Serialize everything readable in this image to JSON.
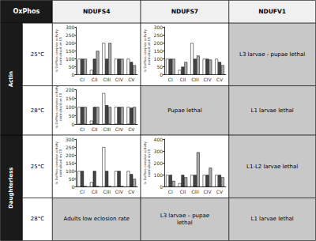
{
  "chart_data": [
    {
      "type": "table",
      "header": "OxPhos",
      "columns": [
        "NDUFS4",
        "NDUFS7",
        "NDUFV1"
      ],
      "rows": [
        {
          "group": "Actin",
          "label": "25°C",
          "cells": [
            null,
            null,
            "L3 larvae - pupae lethal"
          ]
        },
        {
          "group": "Actin",
          "label": "28°C",
          "cells": [
            null,
            "Pupae lethal",
            "L1 larvae lethal"
          ]
        },
        {
          "group": "Daughterless",
          "label": "25°C",
          "cells": [
            null,
            null,
            "L1-L2 larvae lethal"
          ]
        },
        {
          "group": "Daughterless",
          "label": "28°C",
          "cells": [
            "Adults low eclosion rate",
            "L3 larvae – pupae\nlethal",
            "L1 larvae lethal"
          ]
        }
      ]
    },
    {
      "type": "bar",
      "categories": [
        "CI",
        "CII",
        "CIII",
        "CIV",
        "CV"
      ],
      "ylabel": "% OxPhos complex activity\nnormalised on CS",
      "ylim": [
        0,
        300
      ],
      "yticks": [
        0,
        50,
        100,
        150,
        200,
        250,
        300
      ],
      "grid": false,
      "series": [
        {
          "color": "white",
          "values": [
            100,
            30,
            200,
            100,
            100
          ]
        },
        {
          "color": "#444444",
          "values": [
            100,
            100,
            100,
            100,
            80
          ]
        },
        {
          "color": "#aaaaaa",
          "values": [
            100,
            150,
            200,
            100,
            60
          ]
        }
      ]
    },
    {
      "type": "bar",
      "categories": [
        "CI",
        "CII",
        "CIII",
        "CIV",
        "CV"
      ],
      "ylabel": "% OxPhos complex activity\nnormalised on CS",
      "ylim": [
        0,
        300
      ],
      "yticks": [
        0,
        50,
        100,
        150,
        200,
        250,
        300
      ],
      "grid": false,
      "series": [
        {
          "color": "white",
          "values": [
            100,
            30,
            200,
            100,
            100
          ]
        },
        {
          "color": "#444444",
          "values": [
            100,
            50,
            100,
            100,
            80
          ]
        },
        {
          "color": "#aaaaaa",
          "values": [
            100,
            80,
            120,
            95,
            60
          ]
        }
      ]
    },
    {
      "type": "bar",
      "categories": [
        "CI",
        "CII",
        "CIII",
        "CIV",
        "CV"
      ],
      "ylabel": "% OxPhos complex activity\nnormalised on CS",
      "ylim": [
        0,
        200
      ],
      "yticks": [
        0,
        50,
        100,
        150,
        200
      ],
      "grid": false,
      "series": [
        {
          "color": "white",
          "values": [
            100,
            20,
            180,
            100,
            100
          ]
        },
        {
          "color": "#444444",
          "values": [
            100,
            100,
            110,
            100,
            95
          ]
        },
        {
          "color": "#aaaaaa",
          "values": [
            100,
            100,
            100,
            100,
            100
          ]
        }
      ]
    },
    {
      "type": "bar",
      "categories": [
        "CI",
        "CII",
        "CIII",
        "CIV",
        "CV"
      ],
      "ylabel": "% OxPhos complex activity\nnormalised on CS",
      "ylim": [
        0,
        300
      ],
      "yticks": [
        0,
        50,
        100,
        150,
        200,
        250,
        300
      ],
      "grid": false,
      "series": [
        {
          "color": "white",
          "values": [
            100,
            30,
            250,
            100,
            100
          ]
        },
        {
          "color": "#444444",
          "values": [
            100,
            100,
            100,
            100,
            80
          ]
        },
        {
          "color": "#aaaaaa",
          "values": [
            5,
            5,
            5,
            5,
            50
          ]
        }
      ]
    },
    {
      "type": "bar",
      "categories": [
        "CI",
        "CII",
        "CIII",
        "CIV",
        "CV"
      ],
      "ylabel": "% OxPhos complex activity\nnormalised on CS",
      "ylim": [
        0,
        400
      ],
      "yticks": [
        0,
        100,
        200,
        300,
        400
      ],
      "grid": false,
      "series": [
        {
          "color": "white",
          "values": [
            100,
            30,
            100,
            100,
            100
          ]
        },
        {
          "color": "#444444",
          "values": [
            100,
            100,
            100,
            100,
            100
          ]
        },
        {
          "color": "#aaaaaa",
          "values": [
            50,
            80,
            290,
            160,
            80
          ]
        }
      ]
    }
  ]
}
